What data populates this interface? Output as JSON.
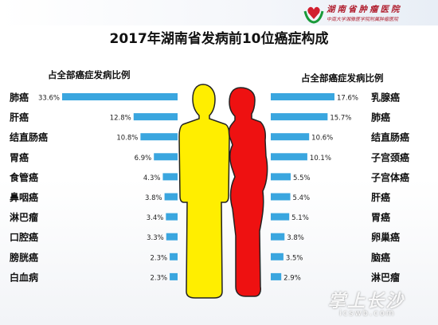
{
  "header": {
    "hospital_name": "湖南省肿瘤医院",
    "hospital_sub": "中南大学湘雅医学院附属肿瘤医院",
    "title": "2017年湖南省发病前10位癌症构成"
  },
  "watermark": {
    "brand": "掌上长沙",
    "url": "icswb.com"
  },
  "colors": {
    "bar": "#3aa6df",
    "male_figure": "#ffee00",
    "female_figure": "#ee1111",
    "figure_outline": "#222222"
  },
  "chart_data": [
    {
      "type": "bar",
      "orientation": "horizontal",
      "direction": "right-to-left",
      "title": "占全部癌症发病比例",
      "categories": [
        "肺癌",
        "肝癌",
        "结直肠癌",
        "胃癌",
        "食管癌",
        "鼻咽癌",
        "淋巴瘤",
        "口腔癌",
        "膀胱癌",
        "白血病"
      ],
      "values": [
        33.6,
        12.8,
        10.8,
        6.9,
        4.3,
        3.8,
        3.4,
        3.3,
        2.3,
        2.3
      ],
      "value_labels": [
        "33.6%",
        "12.8%",
        "10.8%",
        "6.9%",
        "4.3%",
        "3.8%",
        "3.4%",
        "3.3%",
        "2.3%",
        "2.3%"
      ],
      "unit": "%"
    },
    {
      "type": "bar",
      "orientation": "horizontal",
      "direction": "left-to-right",
      "title": "占全部癌症发病比例",
      "categories": [
        "乳腺癌",
        "肺癌",
        "结直肠癌",
        "子宫颈癌",
        "子宫体癌",
        "肝癌",
        "胃癌",
        "卵巢癌",
        "脑癌",
        "淋巴瘤"
      ],
      "values": [
        17.6,
        15.7,
        10.6,
        10.1,
        5.5,
        5.4,
        5.1,
        3.8,
        3.5,
        2.9
      ],
      "value_labels": [
        "17.6%",
        "15.7%",
        "10.6%",
        "10.1%",
        "5.5%",
        "5.4%",
        "5.1%",
        "3.8%",
        "3.5%",
        "2.9%"
      ],
      "unit": "%"
    }
  ]
}
